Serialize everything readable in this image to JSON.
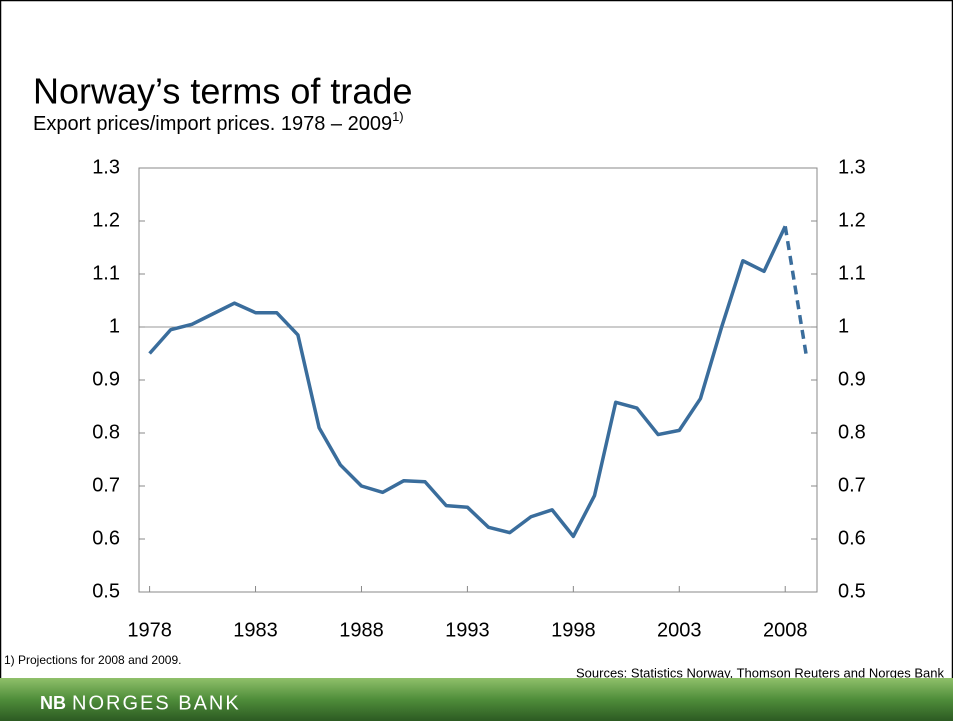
{
  "title": "Norway’s terms of trade",
  "subtitle": "Export prices/import prices. 1978 – 2009",
  "subtitle_note": "1)",
  "footnote": "1)  Projections for 2008 and 2009.",
  "sources": "Sources: Statistics Norway, Thomson Reuters and Norges Bank",
  "brand_mark": "NB",
  "brand": "NORGES BANK",
  "chart_data": {
    "type": "line",
    "x": [
      1978,
      1979,
      1980,
      1981,
      1982,
      1983,
      1984,
      1985,
      1986,
      1987,
      1988,
      1989,
      1990,
      1991,
      1992,
      1993,
      1994,
      1995,
      1996,
      1997,
      1998,
      1999,
      2000,
      2001,
      2002,
      2003,
      2004,
      2005,
      2006,
      2007,
      2008,
      2009
    ],
    "series": [
      {
        "color": "#3a6d9c",
        "projection_start": 2008,
        "values": [
          0.95,
          0.995,
          1.005,
          1.025,
          1.045,
          1.027,
          1.027,
          0.985,
          0.81,
          0.74,
          0.7,
          0.688,
          0.71,
          0.708,
          0.663,
          0.66,
          0.622,
          0.612,
          0.642,
          0.655,
          0.605,
          0.682,
          0.858,
          0.847,
          0.797,
          0.805,
          0.865,
          1.0,
          1.125,
          1.105,
          1.19,
          0.945
        ]
      }
    ],
    "xlim": [
      1977.5,
      2009.5
    ],
    "xticks": [
      1978,
      1983,
      1988,
      1993,
      1998,
      2003,
      2008
    ],
    "ylim": [
      0.5,
      1.3
    ],
    "yticks": [
      0.5,
      0.6,
      0.7,
      0.8,
      0.9,
      1,
      1.1,
      1.2,
      1.3
    ],
    "y2lim": [
      0.5,
      1.3
    ],
    "y2ticks": [
      0.5,
      0.6,
      0.7,
      0.8,
      0.9,
      1,
      1.1,
      1.2,
      1.3
    ],
    "reference_line": 1,
    "grid": false
  }
}
